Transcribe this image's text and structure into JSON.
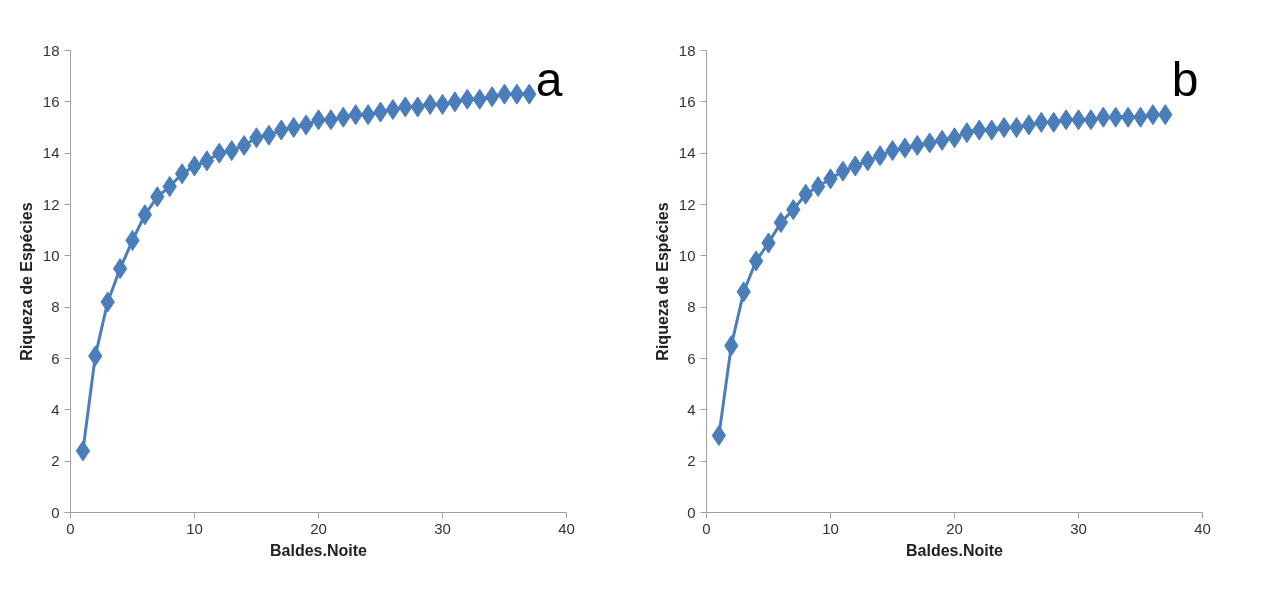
{
  "chart_data": [
    {
      "type": "line",
      "xlabel": "Baldes.Noite",
      "ylabel": "Riqueza de Espécies",
      "annotations": [
        "a"
      ],
      "marker": "diamond",
      "line_style": "solid",
      "grid": false,
      "x": [
        1,
        2,
        3,
        4,
        5,
        6,
        7,
        8,
        9,
        10,
        11,
        12,
        13,
        14,
        15,
        16,
        17,
        18,
        19,
        20,
        21,
        22,
        23,
        24,
        25,
        26,
        27,
        28,
        29,
        30,
        31,
        32,
        33,
        34,
        35,
        36,
        37
      ],
      "series": [
        {
          "color": "#4a7ebb",
          "values": [
            2.4,
            6.1,
            8.2,
            9.5,
            10.6,
            11.6,
            12.3,
            12.7,
            13.2,
            13.5,
            13.7,
            14.0,
            14.1,
            14.3,
            14.6,
            14.7,
            14.9,
            15.0,
            15.1,
            15.3,
            15.3,
            15.4,
            15.5,
            15.5,
            15.6,
            15.7,
            15.8,
            15.8,
            15.9,
            15.9,
            16.0,
            16.1,
            16.1,
            16.2,
            16.3,
            16.3,
            16.3
          ]
        }
      ],
      "xlim": [
        0,
        40
      ],
      "xticks": [
        0,
        10,
        20,
        30,
        40
      ],
      "ylim": [
        0,
        18
      ],
      "yticks": [
        0,
        2,
        4,
        6,
        8,
        10,
        12,
        14,
        16,
        18
      ]
    },
    {
      "type": "line",
      "xlabel": "Baldes.Noite",
      "ylabel": "Riqueza de Espécies",
      "annotations": [
        "b"
      ],
      "marker": "diamond",
      "line_style": "solid",
      "grid": false,
      "x": [
        1,
        2,
        3,
        4,
        5,
        6,
        7,
        8,
        9,
        10,
        11,
        12,
        13,
        14,
        15,
        16,
        17,
        18,
        19,
        20,
        21,
        22,
        23,
        24,
        25,
        26,
        27,
        28,
        29,
        30,
        31,
        32,
        33,
        34,
        35,
        36,
        37
      ],
      "series": [
        {
          "color": "#4a7ebb",
          "values": [
            3.0,
            6.5,
            8.6,
            9.8,
            10.5,
            11.3,
            11.8,
            12.4,
            12.7,
            13.0,
            13.3,
            13.5,
            13.7,
            13.9,
            14.1,
            14.2,
            14.3,
            14.4,
            14.5,
            14.6,
            14.8,
            14.9,
            14.9,
            15.0,
            15.0,
            15.1,
            15.2,
            15.2,
            15.3,
            15.3,
            15.3,
            15.4,
            15.4,
            15.4,
            15.4,
            15.5,
            15.5
          ]
        }
      ],
      "xlim": [
        0,
        40
      ],
      "xticks": [
        0,
        10,
        20,
        30,
        40
      ],
      "ylim": [
        0,
        18
      ],
      "yticks": [
        0,
        2,
        4,
        6,
        8,
        10,
        12,
        14,
        16,
        18
      ]
    }
  ]
}
